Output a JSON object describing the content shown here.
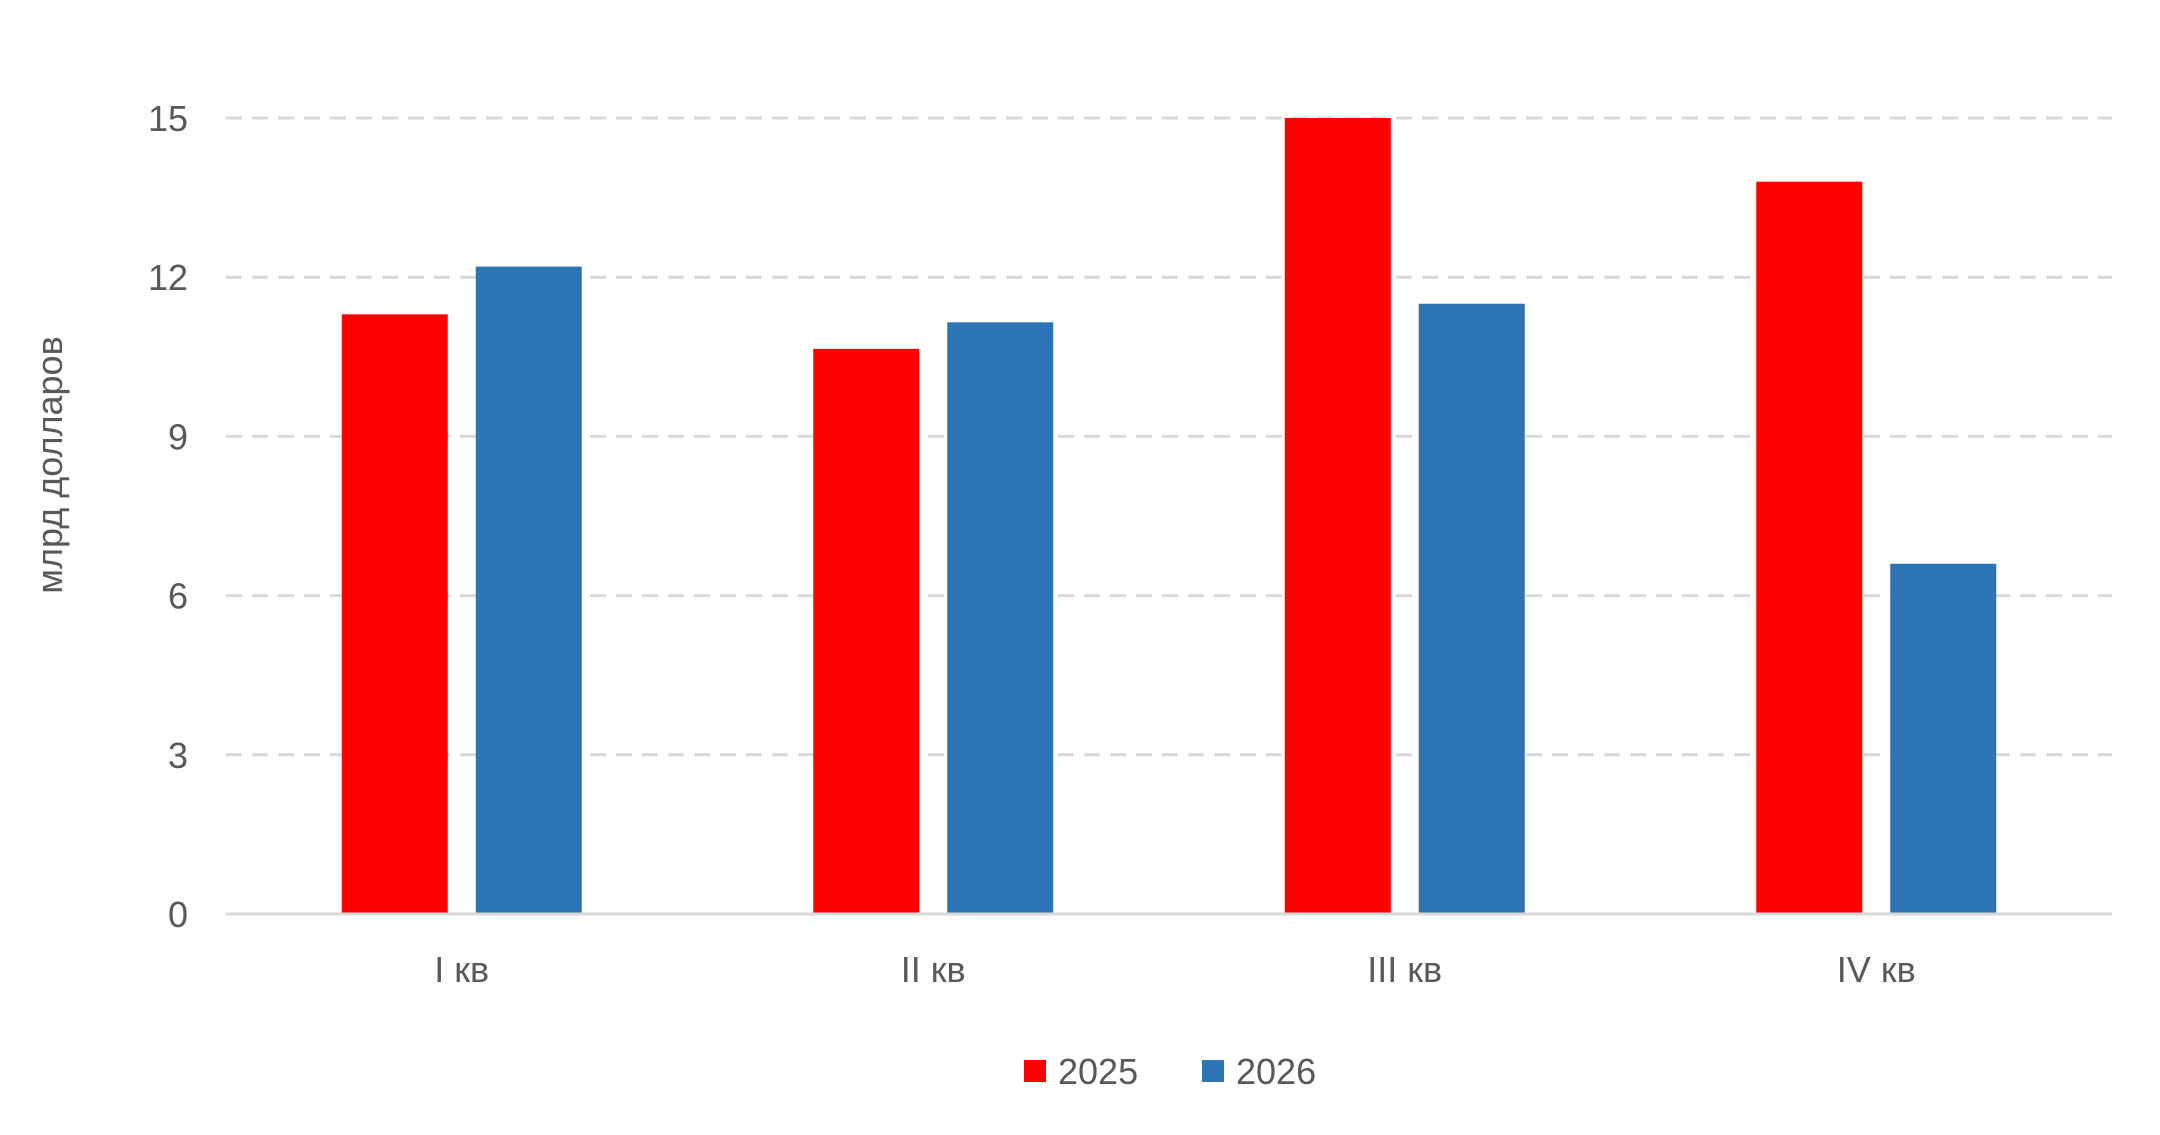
{
  "chart_data": {
    "type": "bar",
    "title": "",
    "xlabel": "",
    "ylabel": "млрд долларов",
    "categories": [
      "I кв",
      "II кв",
      "III кв",
      "IV кв"
    ],
    "series": [
      {
        "name": "2025",
        "values": [
          11.3,
          10.65,
          15.0,
          13.8
        ],
        "color": "#ff0000"
      },
      {
        "name": "2026",
        "values": [
          12.2,
          11.15,
          11.5,
          6.6
        ],
        "color": "#2e75b6"
      }
    ],
    "ylim": [
      0,
      15
    ],
    "yticks": [
      0,
      3,
      6,
      9,
      12,
      15
    ],
    "grid": true,
    "legend_position": "bottom-center"
  }
}
